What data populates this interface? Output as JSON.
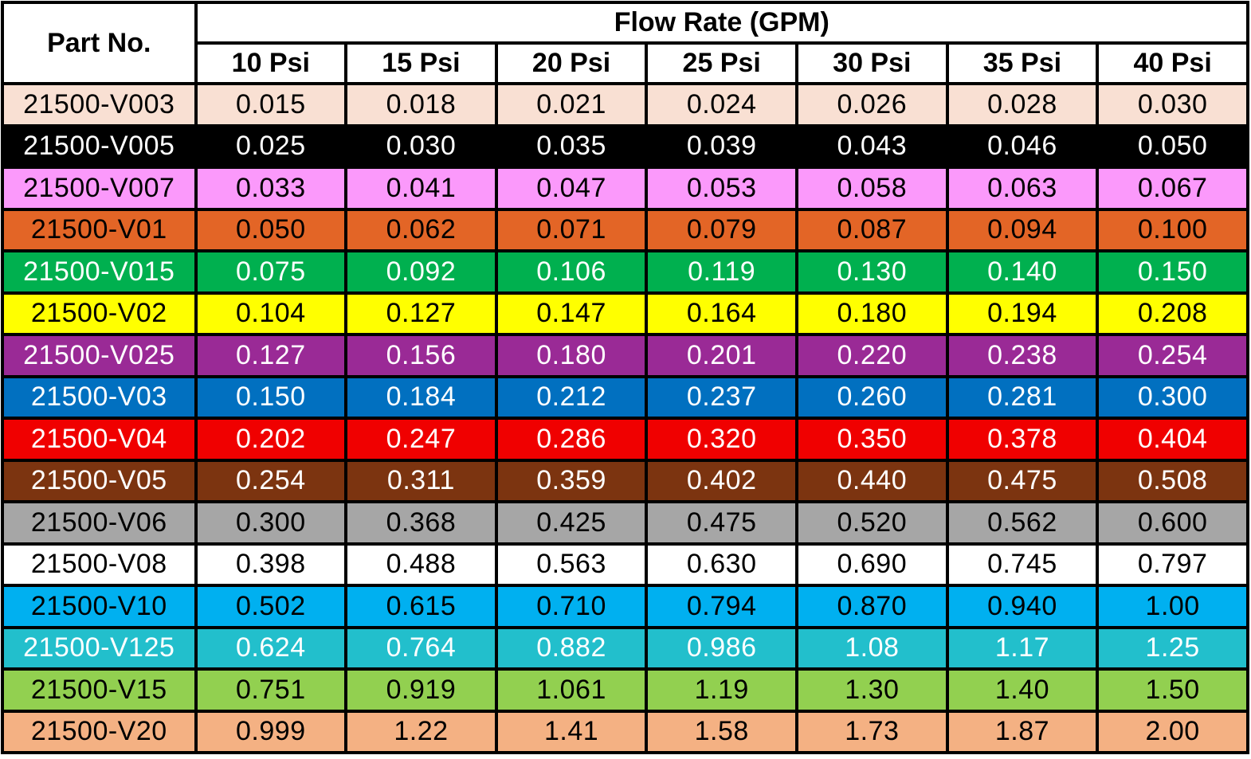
{
  "table": {
    "part_header": "Part No.",
    "group_header": "Flow Rate (GPM)",
    "psi_headers": [
      "10 Psi",
      "15 Psi",
      "20 Psi",
      "25 Psi",
      "30 Psi",
      "35 Psi",
      "40 Psi"
    ],
    "rows": [
      {
        "part": "21500-V003",
        "bg": "#f9e0d3",
        "fg": "#000000",
        "values": [
          "0.015",
          "0.018",
          "0.021",
          "0.024",
          "0.026",
          "0.028",
          "0.030"
        ]
      },
      {
        "part": "21500-V005",
        "bg": "#000000",
        "fg": "#ffffff",
        "values": [
          "0.025",
          "0.030",
          "0.035",
          "0.039",
          "0.043",
          "0.046",
          "0.050"
        ]
      },
      {
        "part": "21500-V007",
        "bg": "#fb99fb",
        "fg": "#000000",
        "values": [
          "0.033",
          "0.041",
          "0.047",
          "0.053",
          "0.058",
          "0.063",
          "0.067"
        ]
      },
      {
        "part": "21500-V01",
        "bg": "#e36526",
        "fg": "#000000",
        "values": [
          "0.050",
          "0.062",
          "0.071",
          "0.079",
          "0.087",
          "0.094",
          "0.100"
        ]
      },
      {
        "part": "21500-V015",
        "bg": "#00b04f",
        "fg": "#ffffff",
        "values": [
          "0.075",
          "0.092",
          "0.106",
          "0.119",
          "0.130",
          "0.140",
          "0.150"
        ]
      },
      {
        "part": "21500-V02",
        "bg": "#ffff00",
        "fg": "#000000",
        "values": [
          "0.104",
          "0.127",
          "0.147",
          "0.164",
          "0.180",
          "0.194",
          "0.208"
        ]
      },
      {
        "part": "21500-V025",
        "bg": "#9a2a96",
        "fg": "#ffffff",
        "values": [
          "0.127",
          "0.156",
          "0.180",
          "0.201",
          "0.220",
          "0.238",
          "0.254"
        ]
      },
      {
        "part": "21500-V03",
        "bg": "#0170c0",
        "fg": "#ffffff",
        "values": [
          "0.150",
          "0.184",
          "0.212",
          "0.237",
          "0.260",
          "0.281",
          "0.300"
        ]
      },
      {
        "part": "21500-V04",
        "bg": "#f00000",
        "fg": "#ffffff",
        "values": [
          "0.202",
          "0.247",
          "0.286",
          "0.320",
          "0.350",
          "0.378",
          "0.404"
        ]
      },
      {
        "part": "21500-V05",
        "bg": "#7c3410",
        "fg": "#ffffff",
        "values": [
          "0.254",
          "0.311",
          "0.359",
          "0.402",
          "0.440",
          "0.475",
          "0.508"
        ]
      },
      {
        "part": "21500-V06",
        "bg": "#a6a6a6",
        "fg": "#000000",
        "values": [
          "0.300",
          "0.368",
          "0.425",
          "0.475",
          "0.520",
          "0.562",
          "0.600"
        ]
      },
      {
        "part": "21500-V08",
        "bg": "#ffffff",
        "fg": "#000000",
        "values": [
          "0.398",
          "0.488",
          "0.563",
          "0.630",
          "0.690",
          "0.745",
          "0.797"
        ]
      },
      {
        "part": "21500-V10",
        "bg": "#00b0f0",
        "fg": "#000000",
        "values": [
          "0.502",
          "0.615",
          "0.710",
          "0.794",
          "0.870",
          "0.940",
          "1.00"
        ]
      },
      {
        "part": "21500-V125",
        "bg": "#22bfcc",
        "fg": "#ffffff",
        "values": [
          "0.624",
          "0.764",
          "0.882",
          "0.986",
          "1.08",
          "1.17",
          "1.25"
        ]
      },
      {
        "part": "21500-V15",
        "bg": "#92d050",
        "fg": "#000000",
        "values": [
          "0.751",
          "0.919",
          "1.061",
          "1.19",
          "1.30",
          "1.40",
          "1.50"
        ]
      },
      {
        "part": "21500-V20",
        "bg": "#f4b183",
        "fg": "#000000",
        "values": [
          "0.999",
          "1.22",
          "1.41",
          "1.58",
          "1.73",
          "1.87",
          "2.00"
        ]
      }
    ]
  }
}
